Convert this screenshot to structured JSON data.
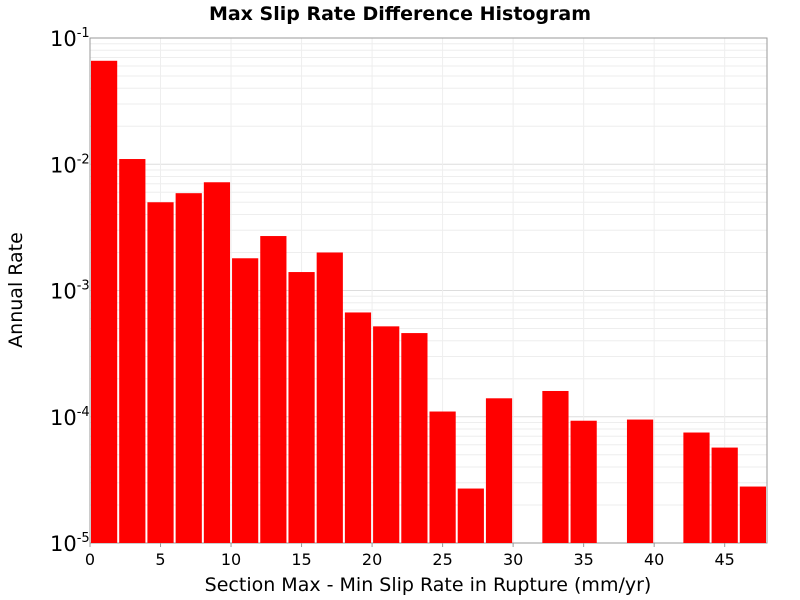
{
  "chart_data": {
    "type": "bar",
    "title": "Max Slip Rate Difference Histogram",
    "xlabel": "Section Max - Min Slip Rate in Rupture (mm/yr)",
    "ylabel": "Annual Rate",
    "y_scale": "log",
    "xlim": [
      0,
      48
    ],
    "ylim": [
      1e-05,
      0.1
    ],
    "x_ticks": [
      0,
      5,
      10,
      15,
      20,
      25,
      30,
      35,
      40,
      45
    ],
    "y_ticks": [
      {
        "value": 1e-05,
        "base": "10",
        "exp": "-5"
      },
      {
        "value": 0.0001,
        "base": "10",
        "exp": "-4"
      },
      {
        "value": 0.001,
        "base": "10",
        "exp": "-3"
      },
      {
        "value": 0.01,
        "base": "10",
        "exp": "-2"
      },
      {
        "value": 0.1,
        "base": "10",
        "exp": "-1"
      }
    ],
    "bin_width": 2,
    "bin_starts": [
      0,
      2,
      4,
      6,
      8,
      10,
      12,
      14,
      16,
      18,
      20,
      22,
      24,
      26,
      28,
      30,
      32,
      34,
      36,
      38,
      40,
      42,
      44,
      46
    ],
    "values": [
      0.066,
      0.011,
      0.005,
      0.0059,
      0.0072,
      0.0018,
      0.0027,
      0.0014,
      0.002,
      0.00067,
      0.00052,
      0.00046,
      0.00011,
      2.7e-05,
      0.00014,
      null,
      0.00016,
      9.3e-05,
      null,
      9.5e-05,
      null,
      7.5e-05,
      5.7e-05,
      2.8e-05
    ],
    "bar_color": "#ff0000",
    "grid": true
  }
}
